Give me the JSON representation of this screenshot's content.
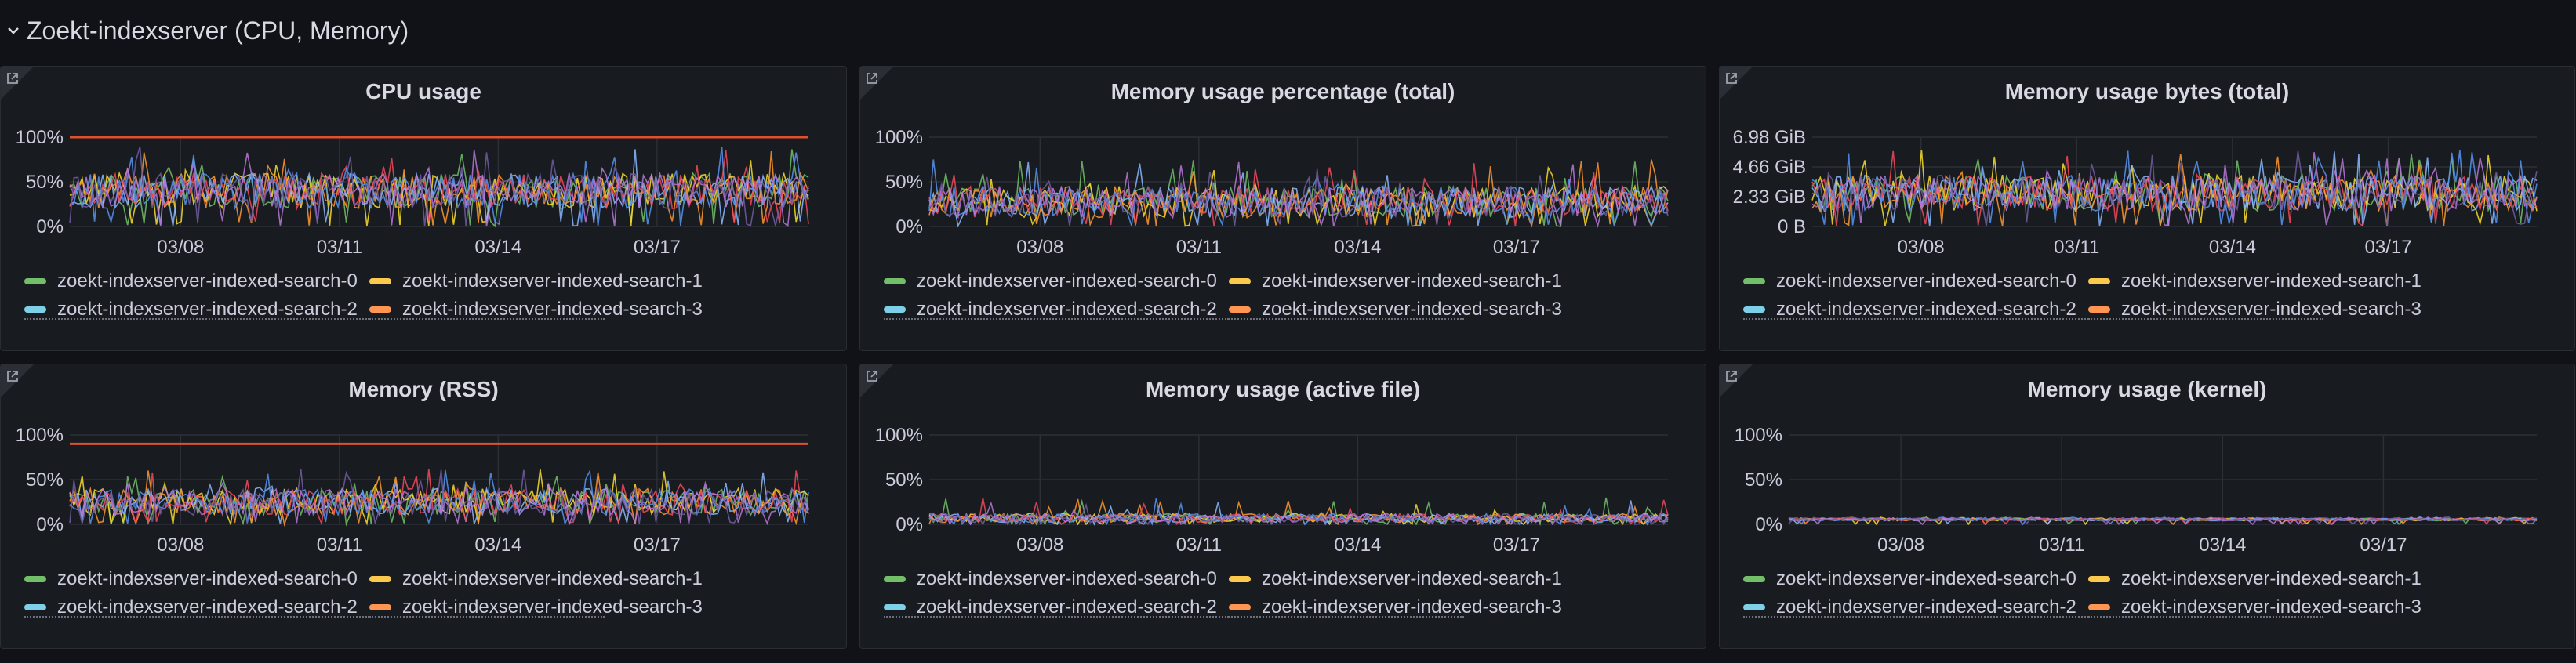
{
  "row": {
    "title": "Zoekt-indexserver (CPU, Memory)"
  },
  "colors": {
    "series": [
      "#73bf69",
      "#fade2a",
      "#8ab8ff",
      "#ff9830",
      "#f2495c",
      "#5794f2",
      "#b877d9",
      "#705da0"
    ],
    "threshold": "#e0502f",
    "panel_bg": "#181b1f"
  },
  "legend": {
    "items": [
      "zoekt-indexserver-indexed-search-0",
      "zoekt-indexserver-indexed-search-1",
      "zoekt-indexserver-indexed-search-2",
      "zoekt-indexserver-indexed-search-3"
    ],
    "colors": [
      "#73bf69",
      "#fbc94d",
      "#7dd0e8",
      "#ff9552"
    ]
  },
  "panels": [
    {
      "title": "CPU usage",
      "y_ticks": [
        "100%",
        "50%",
        "0%"
      ],
      "x_ticks": [
        "03/08",
        "03/11",
        "03/14",
        "03/17"
      ]
    },
    {
      "title": "Memory usage percentage (total)",
      "y_ticks": [
        "100%",
        "50%",
        "0%"
      ],
      "x_ticks": [
        "03/08",
        "03/11",
        "03/14",
        "03/17"
      ]
    },
    {
      "title": "Memory usage bytes (total)",
      "y_ticks": [
        "6.98 GiB",
        "4.66 GiB",
        "2.33 GiB",
        "0 B"
      ],
      "x_ticks": [
        "03/08",
        "03/11",
        "03/14",
        "03/17"
      ]
    },
    {
      "title": "Memory (RSS)",
      "y_ticks": [
        "100%",
        "50%",
        "0%"
      ],
      "x_ticks": [
        "03/08",
        "03/11",
        "03/14",
        "03/17"
      ]
    },
    {
      "title": "Memory usage (active file)",
      "y_ticks": [
        "100%",
        "50%",
        "0%"
      ],
      "x_ticks": [
        "03/08",
        "03/11",
        "03/14",
        "03/17"
      ]
    },
    {
      "title": "Memory usage (kernel)",
      "y_ticks": [
        "100%",
        "50%",
        "0%"
      ],
      "x_ticks": [
        "03/08",
        "03/11",
        "03/14",
        "03/17"
      ]
    }
  ],
  "chart_data": [
    {
      "type": "line",
      "title": "CPU usage",
      "y_range_percent": [
        0,
        100
      ],
      "threshold_percent": 100,
      "typical_range_percent": [
        20,
        60
      ],
      "peak_percent": 90
    },
    {
      "type": "line",
      "title": "Memory usage percentage (total)",
      "y_range_percent": [
        0,
        100
      ],
      "typical_range_percent": [
        10,
        45
      ],
      "peak_percent": 75
    },
    {
      "type": "line",
      "title": "Memory usage bytes (total)",
      "y_range_gib": [
        0,
        6.98
      ],
      "typical_range_gib": [
        1.2,
        4.0
      ],
      "peak_gib": 6.0
    },
    {
      "type": "line",
      "title": "Memory (RSS)",
      "y_range_percent": [
        0,
        100
      ],
      "threshold_percent": 90,
      "typical_range_percent": [
        10,
        40
      ],
      "peak_percent": 62
    },
    {
      "type": "line",
      "title": "Memory usage (active file)",
      "y_range_percent": [
        0,
        100
      ],
      "typical_range_percent": [
        2,
        12
      ],
      "peak_percent": 30
    },
    {
      "type": "line",
      "title": "Memory usage (kernel)",
      "y_range_percent": [
        0,
        100
      ],
      "typical_range_percent": [
        4,
        7
      ],
      "peak_percent": 8
    }
  ]
}
